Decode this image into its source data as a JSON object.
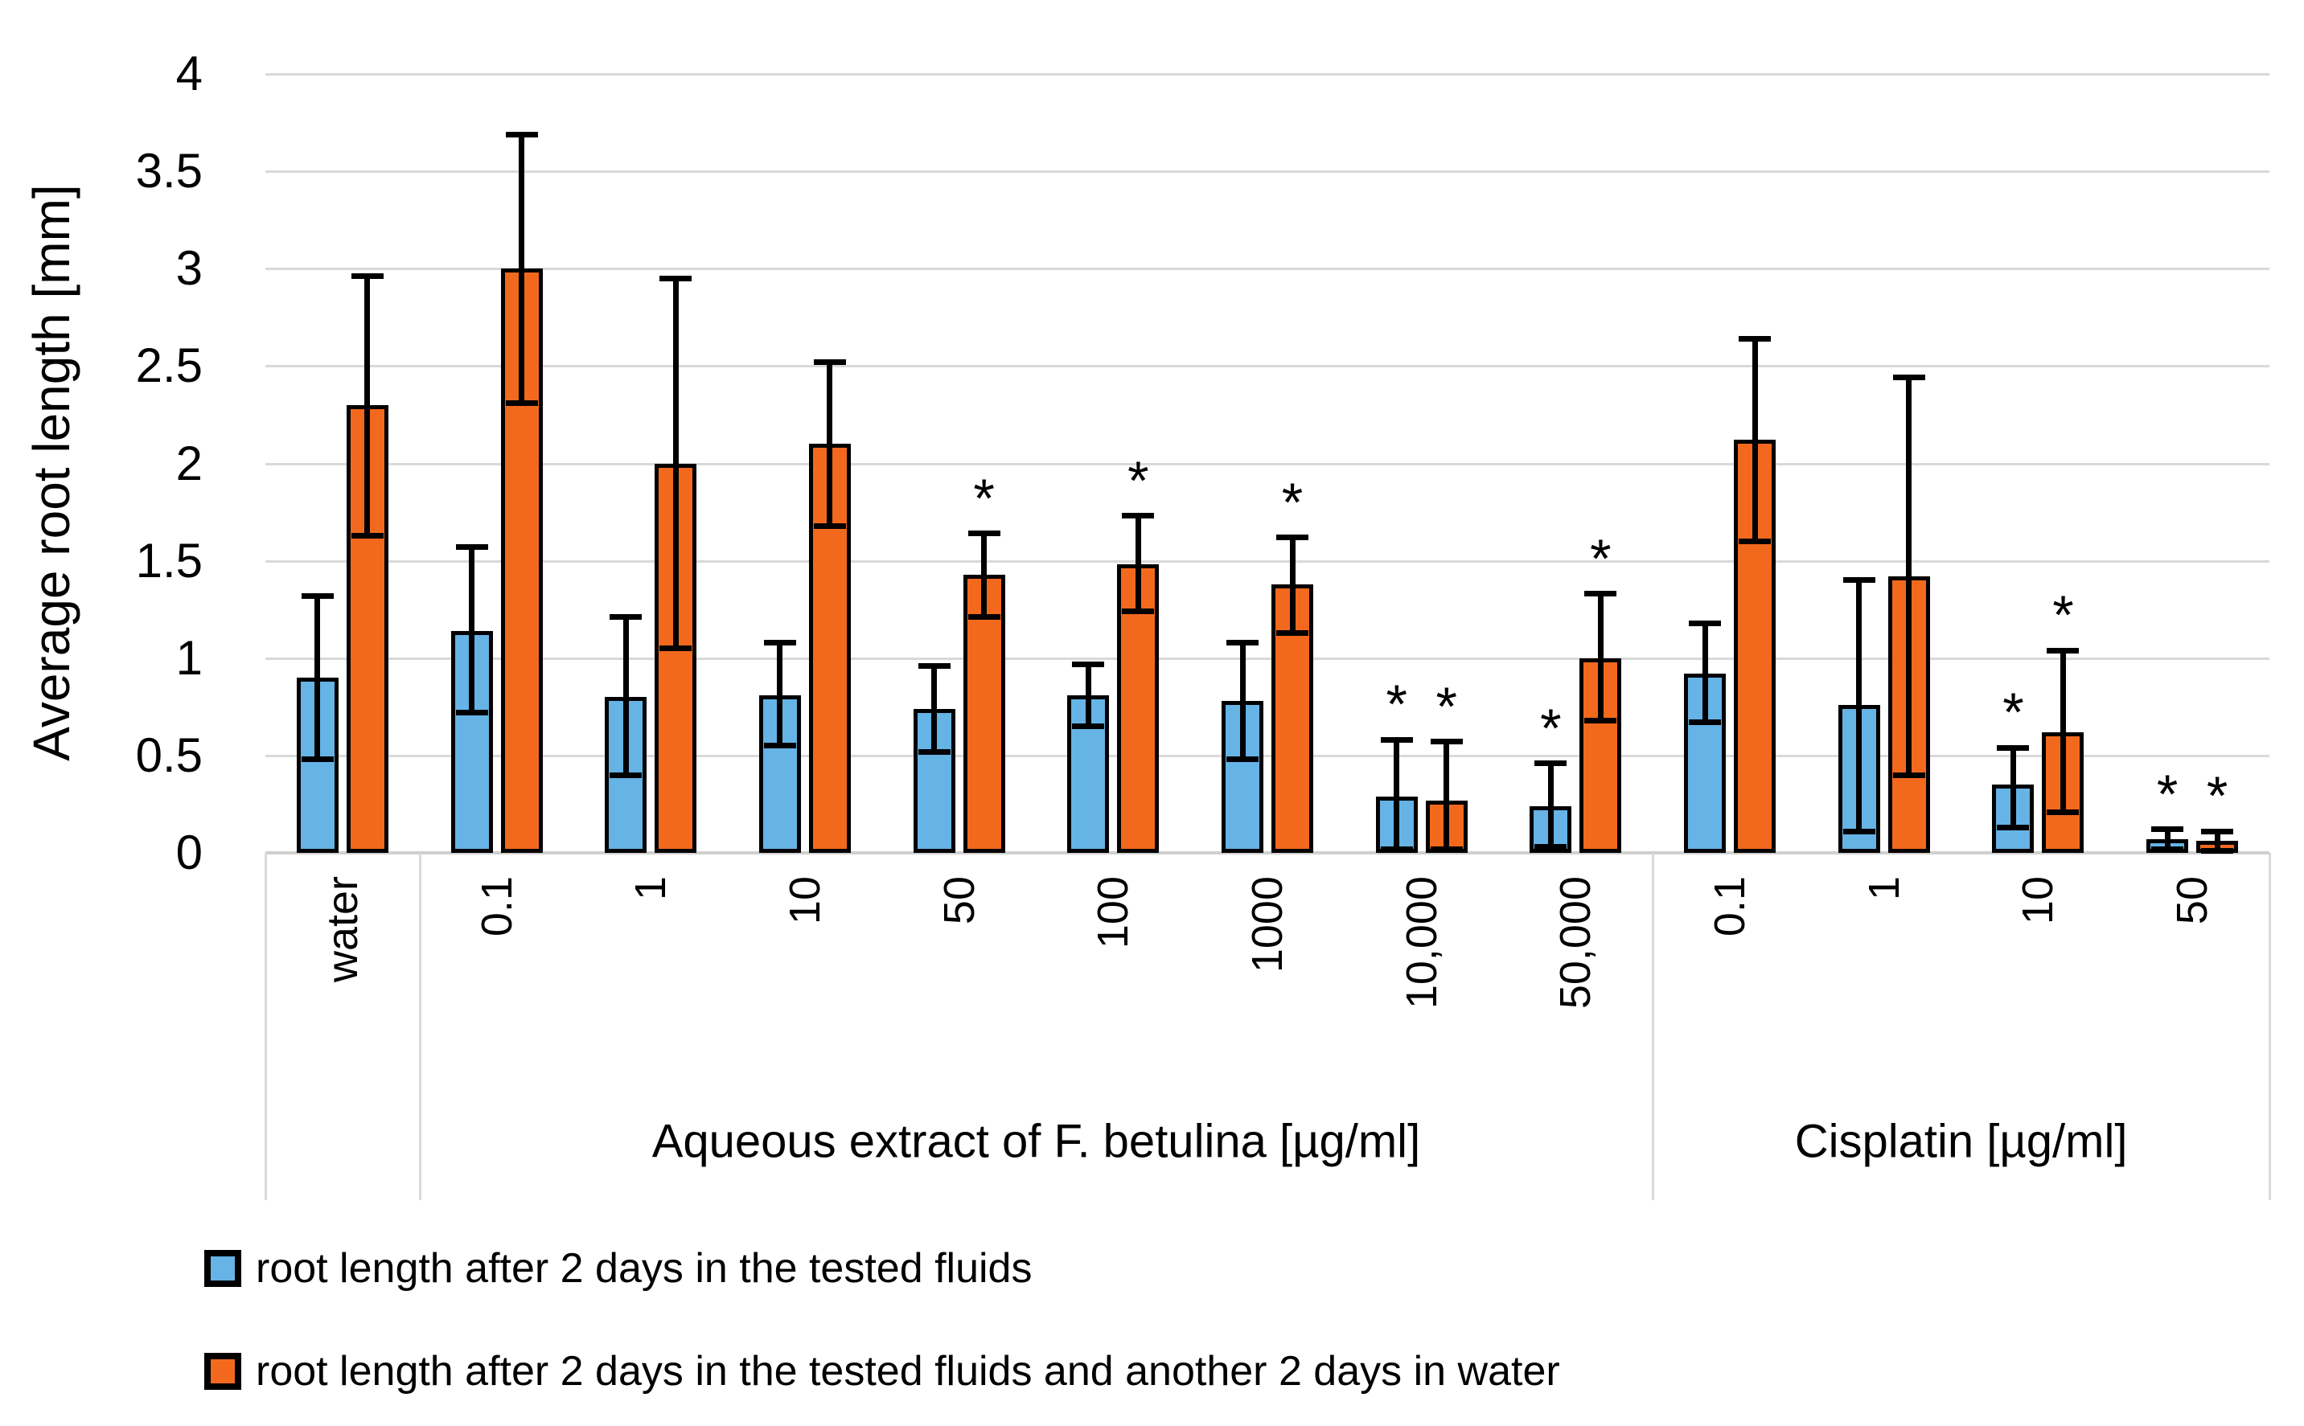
{
  "page": {
    "background": "#ffffff"
  },
  "style": {
    "series_blue": "#66B3E6",
    "series_orange": "#F2691E",
    "bar_border": "#000000",
    "gridline_color": "#D9D9D9",
    "axis_line_color": "#D0D0D0",
    "text_color": "#000000"
  },
  "chart_data": {
    "type": "bar",
    "title": "",
    "xlabel": "",
    "ylabel": "Average root length [mm]",
    "ylim": [
      0,
      4
    ],
    "ytick_values": [
      4,
      3.5,
      3,
      2.5,
      2,
      1.5,
      1,
      0.5,
      0
    ],
    "grid": true,
    "error_bars": true,
    "significance_marker": "*",
    "legend_position": "bottom-left",
    "series": [
      {
        "name": "root length after 2 days in the tested fluids",
        "color": "#66B3E6"
      },
      {
        "name": "root length after 2 days in the tested fluids and another 2 days in water",
        "color": "#F2691E"
      }
    ],
    "sections": [
      {
        "label": "",
        "categories": [
          {
            "label": "water",
            "values": [
              {
                "value": 0.9,
                "err_low": 0.48,
                "err_high": 1.32,
                "significant": false
              },
              {
                "value": 2.3,
                "err_low": 1.63,
                "err_high": 2.96,
                "significant": false
              }
            ]
          }
        ]
      },
      {
        "label": "Aqueous extract of F. betulina [µg/ml]",
        "categories": [
          {
            "label": "0.1",
            "values": [
              {
                "value": 1.14,
                "err_low": 0.72,
                "err_high": 1.57,
                "significant": false
              },
              {
                "value": 3.0,
                "err_low": 2.31,
                "err_high": 3.69,
                "significant": false
              }
            ]
          },
          {
            "label": "1",
            "values": [
              {
                "value": 0.8,
                "err_low": 0.4,
                "err_high": 1.21,
                "significant": false
              },
              {
                "value": 2.0,
                "err_low": 1.05,
                "err_high": 2.95,
                "significant": false
              }
            ]
          },
          {
            "label": "10",
            "values": [
              {
                "value": 0.81,
                "err_low": 0.55,
                "err_high": 1.08,
                "significant": false
              },
              {
                "value": 2.1,
                "err_low": 1.68,
                "err_high": 2.52,
                "significant": false
              }
            ]
          },
          {
            "label": "50",
            "values": [
              {
                "value": 0.74,
                "err_low": 0.52,
                "err_high": 0.96,
                "significant": false
              },
              {
                "value": 1.43,
                "err_low": 1.21,
                "err_high": 1.64,
                "significant": true
              }
            ]
          },
          {
            "label": "100",
            "values": [
              {
                "value": 0.81,
                "err_low": 0.65,
                "err_high": 0.97,
                "significant": false
              },
              {
                "value": 1.48,
                "err_low": 1.24,
                "err_high": 1.73,
                "significant": true
              }
            ]
          },
          {
            "label": "1000",
            "values": [
              {
                "value": 0.78,
                "err_low": 0.48,
                "err_high": 1.08,
                "significant": false
              },
              {
                "value": 1.38,
                "err_low": 1.13,
                "err_high": 1.62,
                "significant": true
              }
            ]
          },
          {
            "label": "10,000",
            "values": [
              {
                "value": 0.29,
                "err_low": 0.02,
                "err_high": 0.58,
                "significant": true
              },
              {
                "value": 0.27,
                "err_low": 0.02,
                "err_high": 0.57,
                "significant": true
              }
            ]
          },
          {
            "label": "50,000",
            "values": [
              {
                "value": 0.24,
                "err_low": 0.03,
                "err_high": 0.46,
                "significant": true
              },
              {
                "value": 1.0,
                "err_low": 0.68,
                "err_high": 1.33,
                "significant": true
              }
            ]
          }
        ]
      },
      {
        "label": "Cisplatin [µg/ml]",
        "categories": [
          {
            "label": "0.1",
            "values": [
              {
                "value": 0.92,
                "err_low": 0.67,
                "err_high": 1.18,
                "significant": false
              },
              {
                "value": 2.12,
                "err_low": 1.6,
                "err_high": 2.64,
                "significant": false
              }
            ]
          },
          {
            "label": "1",
            "values": [
              {
                "value": 0.76,
                "err_low": 0.11,
                "err_high": 1.4,
                "significant": false
              },
              {
                "value": 1.42,
                "err_low": 0.4,
                "err_high": 2.44,
                "significant": false
              }
            ]
          },
          {
            "label": "10",
            "values": [
              {
                "value": 0.35,
                "err_low": 0.13,
                "err_high": 0.54,
                "significant": true
              },
              {
                "value": 0.62,
                "err_low": 0.21,
                "err_high": 1.04,
                "significant": true
              }
            ]
          },
          {
            "label": "50",
            "values": [
              {
                "value": 0.07,
                "err_low": 0.02,
                "err_high": 0.12,
                "significant": true
              },
              {
                "value": 0.06,
                "err_low": 0.01,
                "err_high": 0.11,
                "significant": true
              }
            ]
          }
        ]
      }
    ]
  }
}
